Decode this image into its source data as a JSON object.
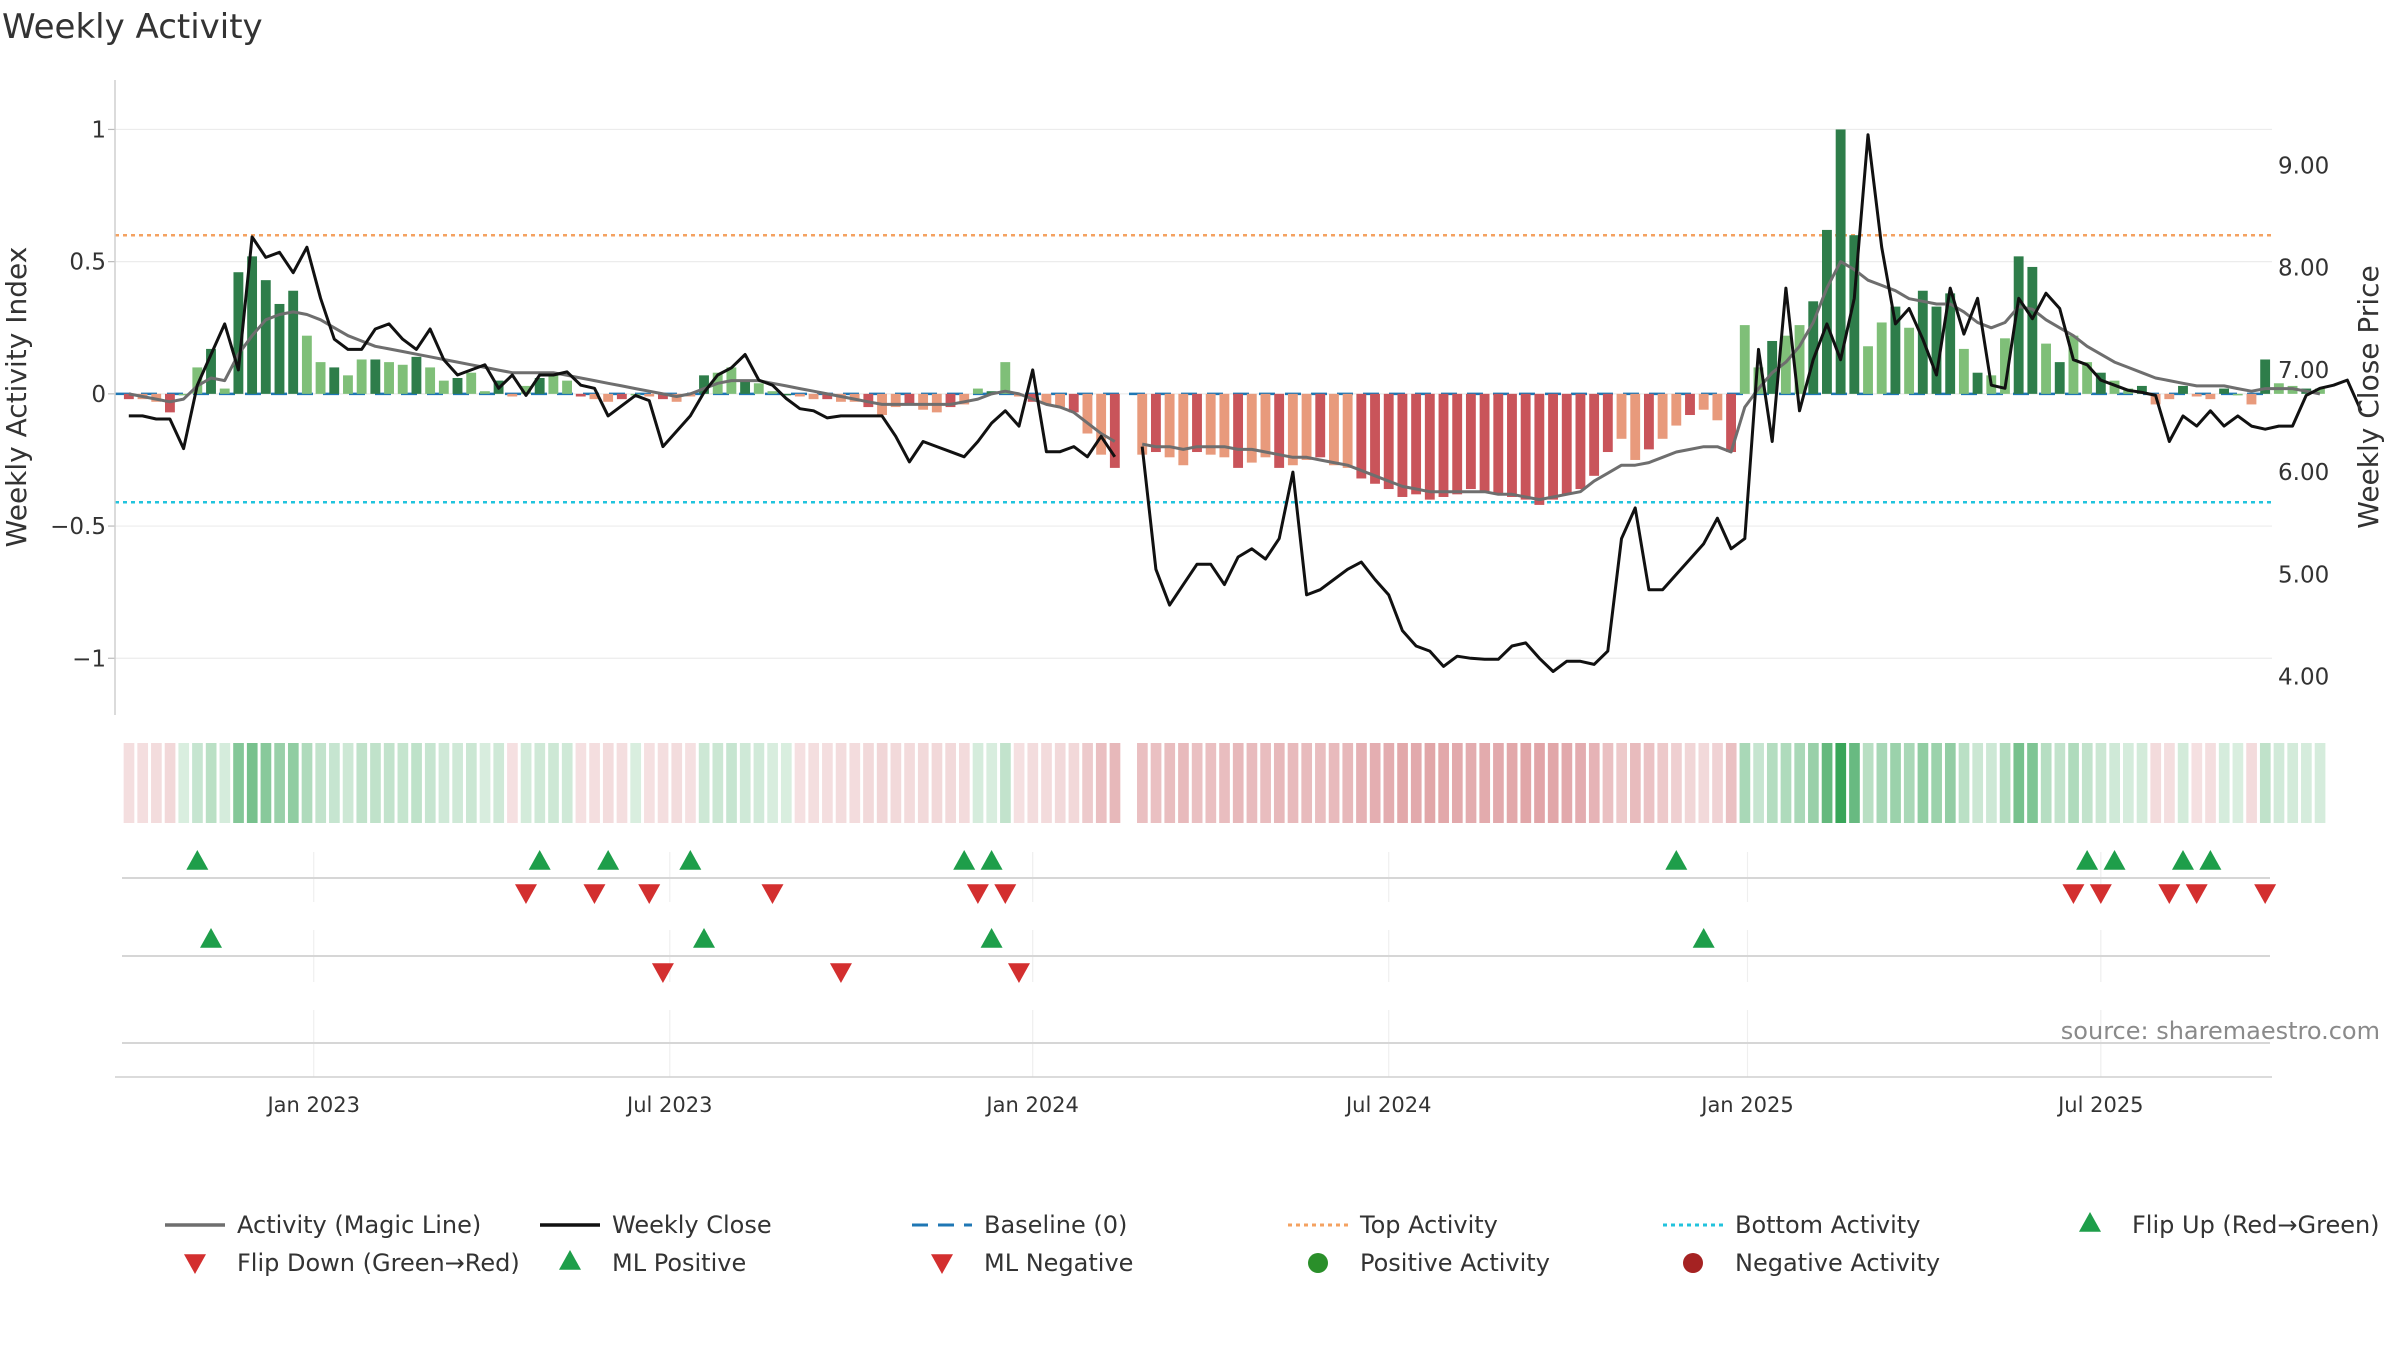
{
  "title": "Weekly Activity",
  "source": "source: sharemaestro.com",
  "colors": {
    "pos_dark": "#2e7d4a",
    "pos_light": "#7fbf78",
    "neg_dark": "#c9545a",
    "neg_light": "#e89a7c",
    "magic": "#6e6e6e",
    "close": "#111111",
    "baseline": "#1f77b4",
    "top": "#f4a261",
    "bottom": "#22c3dd",
    "up": "#1e9e4a",
    "down": "#d32f2f"
  },
  "chart_data": {
    "type": "bar+line",
    "title": "Weekly Activity",
    "ylabel_left": "Weekly Activity Index",
    "ylabel_right": "Weekly Close Price",
    "ylim_left": [
      -1.12,
      1.1
    ],
    "ylim_right": [
      3.85,
      9.6
    ],
    "yticks_left": [
      {
        "v": 1,
        "t": "1"
      },
      {
        "v": 0.5,
        "t": "0.5"
      },
      {
        "v": 0,
        "t": "0"
      },
      {
        "v": -0.5,
        "t": "−0.5"
      },
      {
        "v": -1,
        "t": "−1"
      }
    ],
    "yticks_right": [
      {
        "v": 9,
        "t": "9.00"
      },
      {
        "v": 8,
        "t": "8.00"
      },
      {
        "v": 7,
        "t": "7.00"
      },
      {
        "v": 6,
        "t": "6.00"
      },
      {
        "v": 5,
        "t": "5.00"
      },
      {
        "v": 4,
        "t": "4.00"
      }
    ],
    "x_range_weeks": [
      0,
      157
    ],
    "xticks": [
      {
        "w": 14,
        "t": "Jan 2023"
      },
      {
        "w": 40,
        "t": "Jul 2023"
      },
      {
        "w": 66.5,
        "t": "Jan 2024"
      },
      {
        "w": 92.5,
        "t": "Jul 2024"
      },
      {
        "w": 118.7,
        "t": "Jan 2025"
      },
      {
        "w": 144.5,
        "t": "Jul 2025"
      }
    ],
    "top_activity": 0.6,
    "bottom_activity": -0.41,
    "baseline": 0,
    "activity_bars": [
      -0.02,
      -0.02,
      -0.03,
      -0.07,
      0.0,
      0.1,
      0.17,
      0.02,
      0.46,
      0.52,
      0.43,
      0.34,
      0.39,
      0.22,
      0.12,
      0.1,
      0.07,
      0.13,
      0.13,
      0.12,
      0.11,
      0.14,
      0.1,
      0.05,
      0.06,
      0.08,
      0.01,
      0.05,
      -0.01,
      0.03,
      0.06,
      0.07,
      0.05,
      -0.01,
      -0.02,
      -0.03,
      -0.02,
      0.0,
      -0.01,
      -0.02,
      -0.03,
      -0.01,
      0.07,
      0.08,
      0.1,
      0.05,
      0.04,
      0.01,
      0.0,
      -0.01,
      -0.02,
      -0.02,
      -0.03,
      -0.03,
      -0.05,
      -0.08,
      -0.05,
      -0.04,
      -0.06,
      -0.07,
      -0.05,
      -0.04,
      0.02,
      0.01,
      0.12,
      -0.01,
      -0.03,
      -0.04,
      -0.05,
      -0.07,
      -0.15,
      -0.23,
      -0.28,
      null,
      -0.23,
      -0.22,
      -0.24,
      -0.27,
      -0.22,
      -0.23,
      -0.24,
      -0.28,
      -0.26,
      -0.24,
      -0.28,
      -0.27,
      -0.25,
      -0.24,
      -0.27,
      -0.28,
      -0.32,
      -0.34,
      -0.36,
      -0.39,
      -0.38,
      -0.4,
      -0.39,
      -0.38,
      -0.36,
      -0.37,
      -0.38,
      -0.39,
      -0.4,
      -0.42,
      -0.4,
      -0.38,
      -0.36,
      -0.31,
      -0.22,
      -0.17,
      -0.25,
      -0.21,
      -0.17,
      -0.12,
      -0.08,
      -0.06,
      -0.1,
      -0.22,
      0.26,
      0.1,
      0.2,
      0.22,
      0.26,
      0.35,
      0.62,
      1.0,
      0.6,
      0.18,
      0.27,
      0.33,
      0.25,
      0.39,
      0.33,
      0.38,
      0.17,
      0.08,
      0.07,
      0.21,
      0.52,
      0.48,
      0.19,
      0.12,
      0.22,
      0.12,
      0.08,
      0.05,
      0.02,
      0.03,
      -0.04,
      -0.02,
      0.03,
      -0.01,
      -0.02,
      0.02,
      0.0,
      -0.04,
      0.13,
      0.04,
      0.03,
      0.02,
      0.02
    ],
    "magic_line": [
      0.0,
      -0.01,
      -0.02,
      -0.03,
      -0.02,
      0.03,
      0.06,
      0.05,
      0.15,
      0.22,
      0.28,
      0.3,
      0.31,
      0.3,
      0.28,
      0.25,
      0.22,
      0.2,
      0.18,
      0.17,
      0.16,
      0.15,
      0.14,
      0.13,
      0.12,
      0.11,
      0.1,
      0.09,
      0.08,
      0.08,
      0.08,
      0.08,
      0.07,
      0.06,
      0.05,
      0.04,
      0.03,
      0.02,
      0.01,
      0.0,
      -0.01,
      0.0,
      0.02,
      0.04,
      0.05,
      0.05,
      0.05,
      0.04,
      0.03,
      0.02,
      0.01,
      0.0,
      -0.01,
      -0.02,
      -0.03,
      -0.04,
      -0.04,
      -0.04,
      -0.04,
      -0.04,
      -0.04,
      -0.03,
      -0.02,
      0.0,
      0.01,
      0.0,
      -0.02,
      -0.04,
      -0.05,
      -0.07,
      -0.11,
      -0.15,
      -0.18,
      null,
      -0.19,
      -0.2,
      -0.2,
      -0.21,
      -0.2,
      -0.2,
      -0.2,
      -0.21,
      -0.21,
      -0.22,
      -0.23,
      -0.24,
      -0.24,
      -0.25,
      -0.26,
      -0.27,
      -0.29,
      -0.31,
      -0.33,
      -0.35,
      -0.36,
      -0.37,
      -0.37,
      -0.37,
      -0.37,
      -0.37,
      -0.38,
      -0.38,
      -0.39,
      -0.4,
      -0.39,
      -0.38,
      -0.37,
      -0.33,
      -0.3,
      -0.27,
      -0.27,
      -0.26,
      -0.24,
      -0.22,
      -0.21,
      -0.2,
      -0.2,
      -0.22,
      -0.05,
      0.02,
      0.08,
      0.12,
      0.18,
      0.27,
      0.4,
      0.5,
      0.47,
      0.43,
      0.41,
      0.39,
      0.36,
      0.35,
      0.34,
      0.34,
      0.31,
      0.27,
      0.25,
      0.27,
      0.33,
      0.32,
      0.28,
      0.25,
      0.22,
      0.18,
      0.15,
      0.12,
      0.1,
      0.08,
      0.06,
      0.05,
      0.04,
      0.03,
      0.03,
      0.03,
      0.02,
      0.01,
      0.02,
      0.02,
      0.02,
      0.01,
      0.0
    ],
    "weekly_close": [
      6.55,
      6.55,
      6.52,
      6.52,
      6.23,
      6.85,
      7.15,
      7.45,
      7.0,
      8.3,
      8.1,
      8.15,
      7.95,
      8.2,
      7.7,
      7.3,
      7.2,
      7.2,
      7.4,
      7.45,
      7.3,
      7.2,
      7.4,
      7.1,
      6.95,
      7.0,
      7.05,
      6.82,
      6.95,
      6.75,
      6.95,
      6.95,
      6.98,
      6.85,
      6.82,
      6.55,
      6.65,
      6.75,
      6.7,
      6.25,
      6.4,
      6.55,
      6.78,
      6.95,
      7.02,
      7.15,
      6.9,
      6.85,
      6.72,
      6.62,
      6.6,
      6.53,
      6.55,
      6.55,
      6.55,
      6.55,
      6.35,
      6.1,
      6.3,
      6.25,
      6.2,
      6.15,
      6.3,
      6.48,
      6.6,
      6.45,
      7.0,
      6.2,
      6.2,
      6.25,
      6.15,
      6.35,
      6.15,
      null,
      6.25,
      5.05,
      4.7,
      4.9,
      5.1,
      5.1,
      4.9,
      5.17,
      5.25,
      5.15,
      5.35,
      6.0,
      4.8,
      4.85,
      4.95,
      5.05,
      5.12,
      4.95,
      4.8,
      4.45,
      4.3,
      4.25,
      4.1,
      4.2,
      4.18,
      4.17,
      4.17,
      4.3,
      4.33,
      4.18,
      4.05,
      4.15,
      4.15,
      4.12,
      4.25,
      5.35,
      5.65,
      4.85,
      4.85,
      5.0,
      5.15,
      5.3,
      5.55,
      5.25,
      5.35,
      7.2,
      6.3,
      7.8,
      6.6,
      7.1,
      7.45,
      7.1,
      7.7,
      9.3,
      8.2,
      7.45,
      7.6,
      7.3,
      6.95,
      7.8,
      7.35,
      7.7,
      6.85,
      6.82,
      7.7,
      7.5,
      7.75,
      7.6,
      7.1,
      7.05,
      6.9,
      6.85,
      6.8,
      6.78,
      6.75,
      6.3,
      6.55,
      6.45,
      6.6,
      6.45,
      6.55,
      6.45,
      6.42,
      6.45,
      6.45,
      6.75,
      6.82,
      6.85,
      6.9,
      6.6
    ],
    "flip_up": [
      5,
      30,
      35,
      41,
      61,
      63,
      113,
      143,
      145,
      150,
      152
    ],
    "flip_down": [
      29,
      34,
      38,
      47,
      62,
      64,
      142,
      144,
      149,
      151,
      156
    ],
    "ml_positive": [
      6,
      42,
      63,
      115
    ],
    "ml_negative": [
      39,
      52,
      65
    ]
  },
  "legend": [
    {
      "label": "Activity (Magic Line)",
      "symbol": "line-gray"
    },
    {
      "label": "Weekly Close",
      "symbol": "line-black"
    },
    {
      "label": "Baseline (0)",
      "symbol": "dash-blue"
    },
    {
      "label": "Top Activity",
      "symbol": "dot-orange"
    },
    {
      "label": "Bottom Activity",
      "symbol": "dot-cyan"
    },
    {
      "label": "Flip Up (Red→Green)",
      "symbol": "tri-up"
    },
    {
      "label": "Flip Down (Green→Red)",
      "symbol": "tri-down"
    },
    {
      "label": "ML Positive",
      "symbol": "tri-up"
    },
    {
      "label": "ML Negative",
      "symbol": "tri-down"
    },
    {
      "label": "Positive Activity",
      "symbol": "circle-green"
    },
    {
      "label": "Negative Activity",
      "symbol": "circle-red"
    }
  ]
}
